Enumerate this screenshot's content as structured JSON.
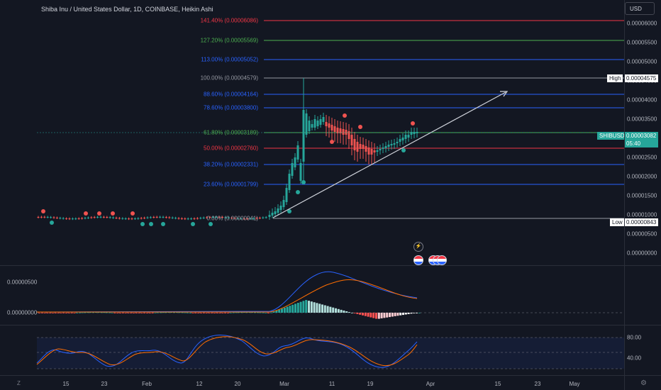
{
  "title": "Shiba Inu / United States Dollar, 1D, COINBASE, Heikin Ashi",
  "currency_button": "USD",
  "price_axis": [
    "0.00006000",
    "0.00005500",
    "0.00005000",
    "0.00004500",
    "0.00004000",
    "0.00003500",
    "0.00003000",
    "0.00002500",
    "0.00002000",
    "0.00001500",
    "0.00001000",
    "0.00000500",
    "0.00000000"
  ],
  "tags": {
    "high_label": "High",
    "high_value": "0.00004575",
    "symbol_label": "SHIBUSD",
    "symbol_value": "0.00003082",
    "countdown": "05:40",
    "low_label": "Low",
    "low_value": "0.00000843"
  },
  "fib_levels": [
    {
      "label": "141.40% (0.00006086)",
      "color": "#f23645"
    },
    {
      "label": "127.20% (0.00005569)",
      "color": "#4caf50"
    },
    {
      "label": "113.00% (0.00005052)",
      "color": "#2962ff"
    },
    {
      "label": "100.00% (0.00004579)",
      "color": "#9598a1"
    },
    {
      "label": "88.60% (0.00004164)",
      "color": "#2962ff"
    },
    {
      "label": "78.60% (0.00003800)",
      "color": "#2962ff"
    },
    {
      "label": "61.80% (0.00003189)",
      "color": "#4caf50"
    },
    {
      "label": "50.00% (0.00002760)",
      "color": "#f23645"
    },
    {
      "label": "38.20% (0.00002331)",
      "color": "#2962ff"
    },
    {
      "label": "23.60% (0.00001799)",
      "color": "#2962ff"
    },
    {
      "label": "0.00% (0.00000941)",
      "color": "#9598a1"
    }
  ],
  "macd_axis": [
    "0.00000500",
    "0.00000000"
  ],
  "osc_axis": [
    "80.00",
    "40.00"
  ],
  "time_axis": [
    "15",
    "23",
    "Feb",
    "12",
    "20",
    "Mar",
    "11",
    "19",
    "Apr",
    "15",
    "23",
    "May"
  ],
  "colors": {
    "up": "#26a69a",
    "down": "#ef5350",
    "high_tag": "#ffffff",
    "symbol_tag": "#26a69a",
    "background": "#131722"
  },
  "icons": [
    "tradingview-z-icon",
    "settings-gear-icon",
    "lightning-icon",
    "us-flag-event-icon"
  ]
}
